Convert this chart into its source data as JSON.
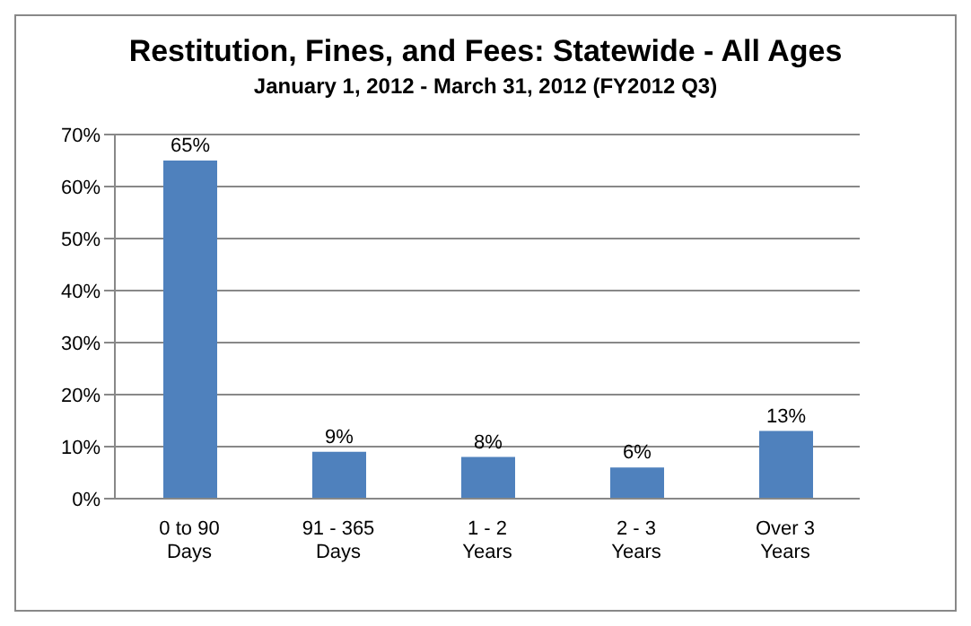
{
  "chart_data": {
    "type": "bar",
    "title": "Restitution, Fines, and Fees: Statewide  - All Ages",
    "subtitle": "January 1, 2012 - March 31, 2012 (FY2012 Q3)",
    "categories": [
      "0 to 90 Days",
      "91 - 365 Days",
      "1 - 2 Years",
      "2 - 3 Years",
      "Over 3 Years"
    ],
    "values": [
      65,
      9,
      8,
      6,
      13
    ],
    "color": "#4f81bd",
    "value_labels": [
      "65%",
      "9%",
      "8%",
      "6%",
      "13%"
    ],
    "ylim": [
      0,
      70
    ],
    "yticks": [
      {
        "value": 0,
        "label": "0%"
      },
      {
        "value": 10,
        "label": "10%"
      },
      {
        "value": 20,
        "label": "20%"
      },
      {
        "value": 30,
        "label": "30%"
      },
      {
        "value": 40,
        "label": "40%"
      },
      {
        "value": 50,
        "label": "50%"
      },
      {
        "value": 60,
        "label": "60%"
      },
      {
        "value": 70,
        "label": "70%"
      }
    ],
    "grid": "y",
    "legend": false
  }
}
